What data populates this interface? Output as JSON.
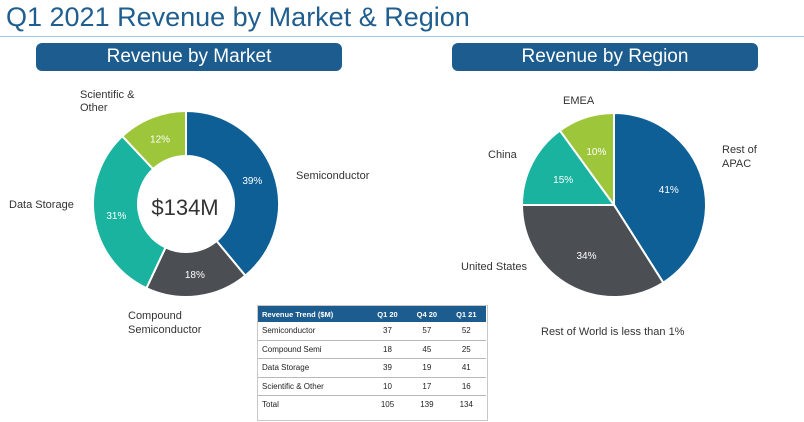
{
  "page": {
    "title": "Q1 2021 Revenue by Market & Region",
    "market_banner": "Revenue by Market",
    "region_banner": "Revenue by Region",
    "region_note": "Rest of World is less than 1%"
  },
  "colors": {
    "title": "#1f5e8e",
    "banner": "#1c5c8e",
    "semiconductor": "#0d5f96",
    "compound": "#4b4f54",
    "storage": "#1ab39f",
    "scientific": "#9dc63b",
    "apac": "#0d5f96",
    "us": "#4b4f54",
    "china": "#1ab39f",
    "emea": "#9dc63b"
  },
  "chart_data": [
    {
      "type": "pie",
      "title": "Revenue by Market",
      "donut": true,
      "center_label": "$134M",
      "slices": [
        {
          "label": "Semiconductor",
          "value": 39,
          "text": "39%",
          "color": "#0d5f96"
        },
        {
          "label": "Compound Semiconductor",
          "value": 18,
          "text": "18%",
          "color": "#4b4f54"
        },
        {
          "label": "Data Storage",
          "value": 31,
          "text": "31%",
          "color": "#1ab39f"
        },
        {
          "label": "Scientific & Other",
          "value": 12,
          "text": "12%",
          "color": "#9dc63b"
        }
      ]
    },
    {
      "type": "pie",
      "title": "Revenue by Region",
      "slices": [
        {
          "label": "Rest of APAC",
          "value": 41,
          "text": "41%",
          "color": "#0d5f96"
        },
        {
          "label": "United States",
          "value": 34,
          "text": "34%",
          "color": "#4b4f54"
        },
        {
          "label": "China",
          "value": 15,
          "text": "15%",
          "color": "#1ab39f"
        },
        {
          "label": "EMEA",
          "value": 10,
          "text": "10%",
          "color": "#9dc63b"
        }
      ]
    },
    {
      "type": "table",
      "headers": [
        "Revenue Trend ($M)",
        "Q1 20",
        "Q4 20",
        "Q1 21"
      ],
      "rows": [
        [
          "Semiconductor",
          "37",
          "57",
          "52"
        ],
        [
          "Compound Semi",
          "18",
          "45",
          "25"
        ],
        [
          "Data Storage",
          "39",
          "19",
          "41"
        ],
        [
          "Scientific & Other",
          "10",
          "17",
          "16"
        ],
        [
          "Total",
          "105",
          "139",
          "134"
        ]
      ]
    }
  ]
}
